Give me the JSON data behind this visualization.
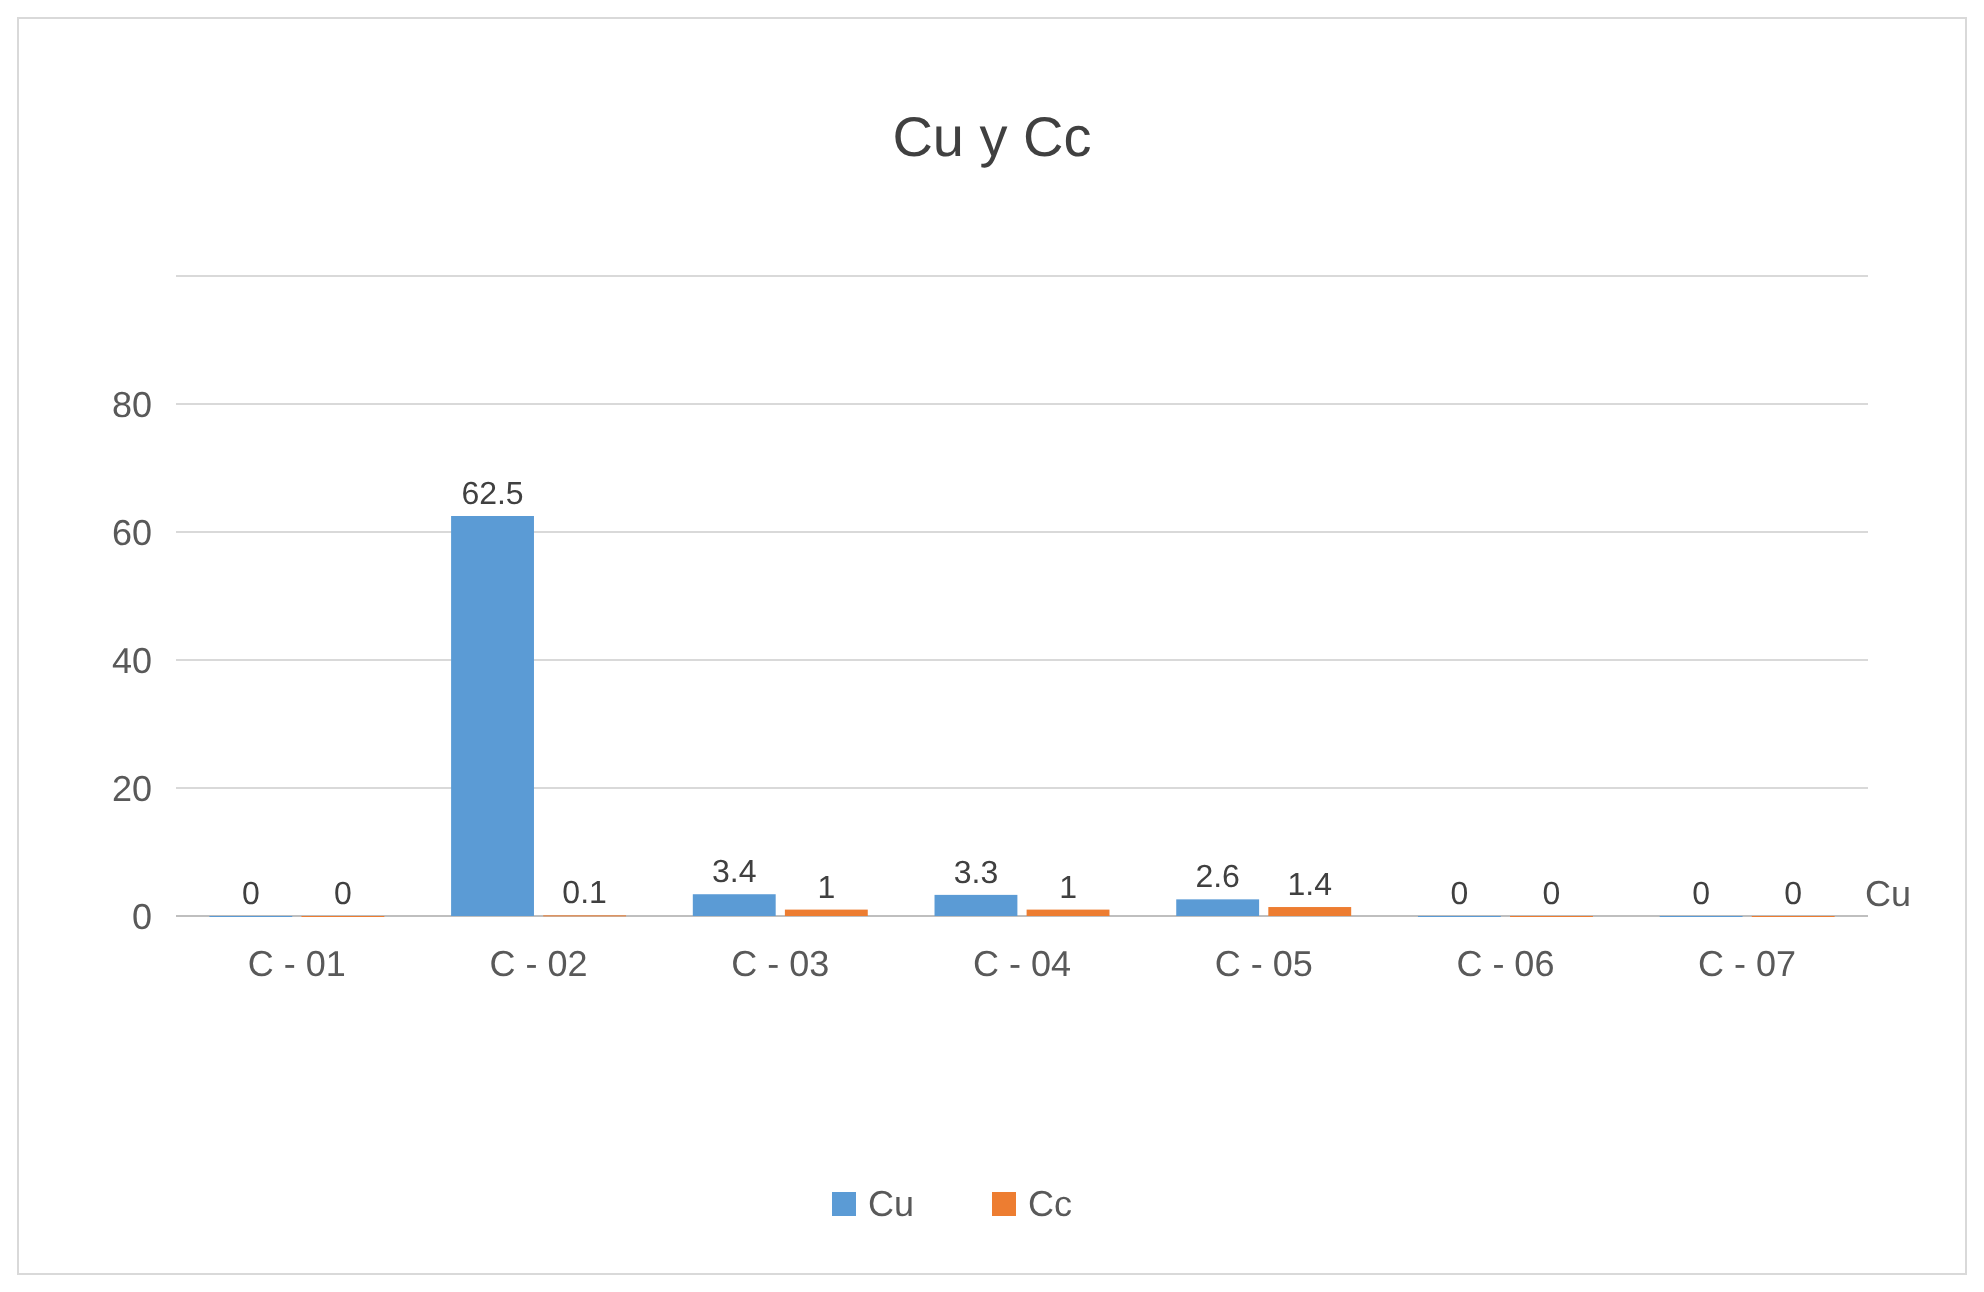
{
  "chart_data": {
    "type": "bar",
    "title": "Cu y Cc",
    "categories": [
      "C - 01",
      "C - 02",
      "C - 03",
      "C - 04",
      "C - 05",
      "C - 06",
      "C - 07"
    ],
    "series": [
      {
        "name": "Cu",
        "color": "#5b9bd5",
        "values": [
          0,
          62.5,
          3.4,
          3.3,
          2.6,
          0,
          0
        ]
      },
      {
        "name": "Cc",
        "color": "#ed7d31",
        "values": [
          0,
          0.1,
          1,
          1,
          1.4,
          0,
          0
        ]
      }
    ],
    "ylim": [
      0,
      100
    ],
    "yticks": [
      0,
      20,
      40,
      60,
      80,
      {
        "value": 100,
        "label": null
      }
    ],
    "grid": "y",
    "legend": "bottom",
    "data_labels": true,
    "annotations": [
      "Cu"
    ]
  }
}
